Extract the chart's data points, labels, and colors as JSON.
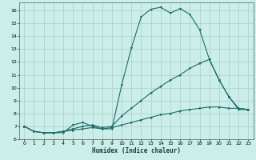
{
  "xlabel": "Humidex (Indice chaleur)",
  "bg_color": "#cceee8",
  "grid_color": "#aacccc",
  "line_color": "#1a6b6b",
  "xlim": [
    -0.5,
    23.5
  ],
  "ylim": [
    6,
    16.6
  ],
  "xticks": [
    0,
    1,
    2,
    3,
    4,
    5,
    6,
    7,
    8,
    9,
    10,
    11,
    12,
    13,
    14,
    15,
    16,
    17,
    18,
    19,
    20,
    21,
    22,
    23
  ],
  "yticks": [
    6,
    7,
    8,
    9,
    10,
    11,
    12,
    13,
    14,
    15,
    16
  ],
  "curve1_x": [
    0,
    1,
    2,
    3,
    4,
    5,
    6,
    7,
    8,
    9,
    10,
    11,
    12,
    13,
    14,
    15,
    16,
    17,
    18,
    19,
    20,
    21,
    22,
    23
  ],
  "curve1_y": [
    7.0,
    6.6,
    6.5,
    6.5,
    6.5,
    7.1,
    7.3,
    7.0,
    6.8,
    6.8,
    10.2,
    13.1,
    15.5,
    16.1,
    16.25,
    15.8,
    16.15,
    15.7,
    14.5,
    12.2,
    10.6,
    9.3,
    8.3,
    8.3
  ],
  "curve2_x": [
    0,
    1,
    2,
    3,
    4,
    5,
    6,
    7,
    8,
    9,
    10,
    11,
    12,
    13,
    14,
    15,
    16,
    17,
    18,
    19,
    20,
    21,
    22,
    23
  ],
  "curve2_y": [
    7.0,
    6.6,
    6.5,
    6.5,
    6.6,
    6.8,
    7.0,
    7.1,
    6.9,
    7.0,
    7.8,
    8.4,
    9.0,
    9.6,
    10.1,
    10.6,
    11.0,
    11.5,
    11.9,
    12.2,
    10.6,
    9.3,
    8.4,
    8.3
  ],
  "curve3_x": [
    0,
    1,
    2,
    3,
    4,
    5,
    6,
    7,
    8,
    9,
    10,
    11,
    12,
    13,
    14,
    15,
    16,
    17,
    18,
    19,
    20,
    21,
    22,
    23
  ],
  "curve3_y": [
    7.0,
    6.6,
    6.5,
    6.5,
    6.6,
    6.7,
    6.8,
    6.9,
    6.8,
    6.9,
    7.1,
    7.3,
    7.5,
    7.7,
    7.9,
    8.0,
    8.2,
    8.3,
    8.4,
    8.5,
    8.5,
    8.4,
    8.4,
    8.3
  ]
}
